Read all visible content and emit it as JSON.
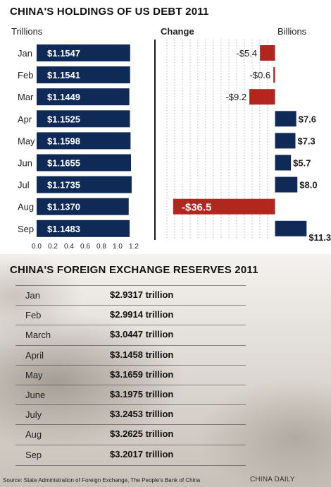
{
  "chart_data": [
    {
      "type": "bar",
      "orientation": "horizontal",
      "title": "CHINA'S HOLDINGS OF US DEBT 2011",
      "unit_label": "Trillions",
      "categories": [
        "Jan",
        "Feb",
        "Mar",
        "Apr",
        "May",
        "Jun",
        "Jul",
        "Aug",
        "Sep"
      ],
      "values": [
        1.1547,
        1.1541,
        1.1449,
        1.1525,
        1.1598,
        1.1655,
        1.1735,
        1.137,
        1.1483
      ],
      "value_labels": [
        "$1.1547",
        "$1.1541",
        "$1.1449",
        "$1.1525",
        "$1.1598",
        "$1.1655",
        "$1.1735",
        "$1.1370",
        "$1.1483"
      ],
      "xlim": [
        0,
        1.2
      ],
      "x_ticks": [
        "0.0",
        "0.2",
        "0.4",
        "0.6",
        "0.8",
        "1.0",
        "1.2"
      ],
      "bar_color": "#0f2a56"
    },
    {
      "type": "bar",
      "orientation": "horizontal",
      "title": "Change",
      "unit_label": "Billions",
      "categories": [
        "Jan",
        "Feb",
        "Mar",
        "Apr",
        "May",
        "Jun",
        "Jul",
        "Aug",
        "Sep"
      ],
      "values": [
        -5.4,
        -0.6,
        -9.2,
        7.6,
        7.3,
        5.7,
        8.0,
        -36.5,
        11.3
      ],
      "value_labels": [
        "-$5.4",
        "-$0.6",
        "-$9.2",
        "$7.6",
        "$7.3",
        "$5.7",
        "$8.0",
        "-$36.5",
        "$11.3"
      ],
      "xlim": [
        -40,
        15
      ],
      "grid": true,
      "negative_color": "#b3261e",
      "positive_color": "#0f2a56"
    }
  ],
  "reserves": {
    "title": "CHINA'S FOREIGN EXCHANGE RESERVES 2011",
    "rows": [
      {
        "month": "Jan",
        "value": "$2.9317 trillion"
      },
      {
        "month": "Feb",
        "value": "$2.9914 trillion"
      },
      {
        "month": "March",
        "value": "$3.0447 trillion"
      },
      {
        "month": "April",
        "value": "$3.1458 trillion"
      },
      {
        "month": "May",
        "value": "$3.1659 trillion"
      },
      {
        "month": "June",
        "value": "$3.1975 trillion"
      },
      {
        "month": "July",
        "value": "$3.2453 trillion"
      },
      {
        "month": "Aug",
        "value": "$3.2625 trillion"
      },
      {
        "month": "Sep",
        "value": "$3.2017 trillion"
      }
    ]
  },
  "footer": {
    "source": "Source: State Administration of Foreign Exchange, The People's Bank of China",
    "credit": "CHINA DAILY"
  }
}
